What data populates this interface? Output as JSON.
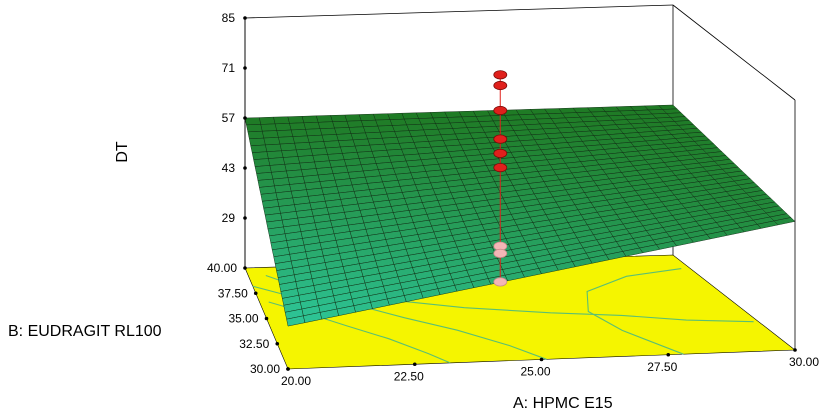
{
  "chart_data": {
    "type": "surface3d",
    "zlabel": "DT",
    "xlabel": "A: HPMC E15",
    "ylabel": "B: EUDRAGIT RL100",
    "x_ticks": [
      "20.00",
      "22.50",
      "25.00",
      "27.50",
      "30.00"
    ],
    "y_ticks": [
      "30.00",
      "32.50",
      "35.00",
      "37.50",
      "40.00"
    ],
    "z_ticks": [
      "29",
      "43",
      "57",
      "71",
      "85"
    ],
    "xlim": [
      20,
      30
    ],
    "ylim": [
      30,
      40
    ],
    "zlim": [
      15,
      85
    ],
    "surface_corners": [
      {
        "x": 20,
        "y": 40,
        "z": 57
      },
      {
        "x": 30,
        "y": 40,
        "z": 57
      },
      {
        "x": 30,
        "y": 30,
        "z": 51
      },
      {
        "x": 20,
        "y": 30,
        "z": 27
      }
    ],
    "design_points": [
      {
        "x": 25,
        "y": 35,
        "z": 81,
        "side": "above"
      },
      {
        "x": 25,
        "y": 35,
        "z": 78,
        "side": "above"
      },
      {
        "x": 25,
        "y": 35,
        "z": 71,
        "side": "above"
      },
      {
        "x": 25,
        "y": 35,
        "z": 63,
        "side": "above"
      },
      {
        "x": 25,
        "y": 35,
        "z": 59,
        "side": "above"
      },
      {
        "x": 25,
        "y": 35,
        "z": 55,
        "side": "above"
      },
      {
        "x": 25,
        "y": 35,
        "z": 33,
        "side": "below"
      },
      {
        "x": 25,
        "y": 35,
        "z": 31,
        "side": "below"
      },
      {
        "x": 25,
        "y": 35,
        "z": 23,
        "side": "below"
      }
    ],
    "colors": {
      "surface_high": "#1f7a24",
      "surface_low": "#2ec79a",
      "floor": "#f5f500",
      "contour": "#5bbf73",
      "point_above": "#e0201c",
      "point_below": "#f3b6b6",
      "box": "#000000"
    }
  }
}
